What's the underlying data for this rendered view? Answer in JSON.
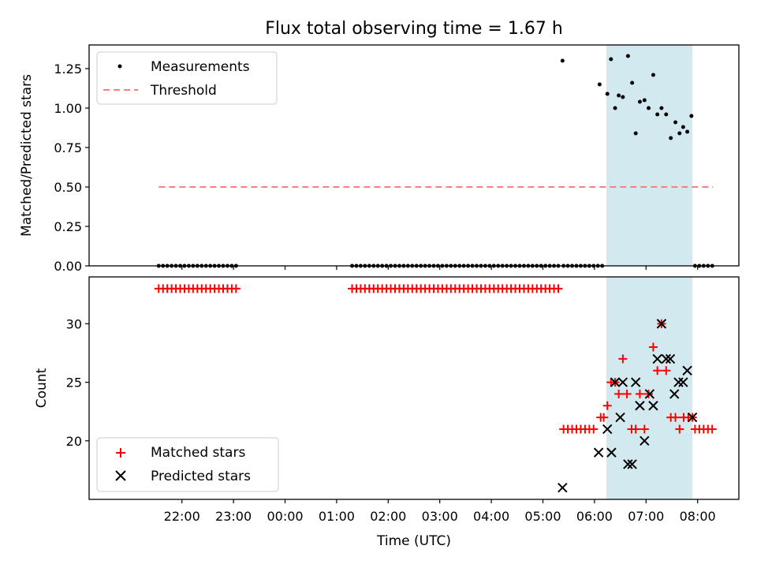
{
  "chart_data": {
    "title": "Flux total observing time = 1.67 h",
    "xlabel": "Time (UTC)",
    "x_unit": "hours since 00:00 UTC (negative = previous day)",
    "xlim": [
      -3.8,
      8.8
    ],
    "xticks": [
      -2,
      -1,
      0,
      1,
      2,
      3,
      4,
      5,
      6,
      7,
      8
    ],
    "xticklabels": [
      "22:00",
      "23:00",
      "00:00",
      "01:00",
      "02:00",
      "03:00",
      "04:00",
      "05:00",
      "06:00",
      "07:00",
      "08:00"
    ],
    "highlight_span": [
      6.23,
      7.9
    ],
    "panels": [
      {
        "id": "ratio",
        "type": "scatter",
        "ylabel": "Matched/Predicted stars",
        "ylim": [
          0,
          1.4
        ],
        "yticks": [
          0,
          0.25,
          0.5,
          0.75,
          1.0,
          1.25
        ],
        "yticklabels": [
          "0.00",
          "0.25",
          "0.50",
          "0.75",
          "1.00",
          "1.25"
        ],
        "legend": [
          "Measurements",
          "Threshold"
        ],
        "threshold": {
          "name": "Threshold",
          "y": 0.5,
          "x_range": [
            -2.45,
            8.3
          ]
        },
        "zeros": [
          {
            "start": -2.45,
            "end": -0.95,
            "step": 0.0833
          },
          {
            "start": 1.3,
            "end": 5.35,
            "step": 0.0833
          },
          {
            "start": 5.4,
            "end": 6.15,
            "step": 0.0833
          },
          {
            "start": 7.95,
            "end": 8.3,
            "step": 0.0833
          }
        ],
        "points": [
          [
            5.38,
            1.3
          ],
          [
            6.1,
            1.15
          ],
          [
            6.25,
            1.09
          ],
          [
            6.32,
            1.31
          ],
          [
            6.4,
            1.0
          ],
          [
            6.47,
            1.08
          ],
          [
            6.55,
            1.07
          ],
          [
            6.65,
            1.33
          ],
          [
            6.73,
            1.16
          ],
          [
            6.8,
            0.84
          ],
          [
            6.88,
            1.04
          ],
          [
            6.97,
            1.05
          ],
          [
            7.05,
            1.0
          ],
          [
            7.14,
            1.21
          ],
          [
            7.22,
            0.96
          ],
          [
            7.3,
            1.0
          ],
          [
            7.39,
            0.96
          ],
          [
            7.48,
            0.81
          ],
          [
            7.57,
            0.91
          ],
          [
            7.65,
            0.84
          ],
          [
            7.72,
            0.88
          ],
          [
            7.8,
            0.85
          ],
          [
            7.88,
            0.95
          ]
        ]
      },
      {
        "id": "counts",
        "type": "scatter",
        "ylabel": "Count",
        "ylim": [
          15,
          34
        ],
        "yticks": [
          20,
          25,
          30
        ],
        "yticklabels": [
          "20",
          "25",
          "30"
        ],
        "legend": [
          "Matched stars",
          "Predicted stars"
        ],
        "matched_runs": [
          {
            "start": -2.45,
            "end": -0.95,
            "step": 0.0833,
            "y": 33
          },
          {
            "start": 1.3,
            "end": 5.35,
            "step": 0.0833,
            "y": 33
          },
          {
            "start": 5.4,
            "end": 6.05,
            "step": 0.0833,
            "y": 21
          },
          {
            "start": 7.95,
            "end": 8.3,
            "step": 0.0833,
            "y": 21
          }
        ],
        "matched_points": [
          [
            6.12,
            22
          ],
          [
            6.18,
            22
          ],
          [
            6.25,
            23
          ],
          [
            6.32,
            25
          ],
          [
            6.4,
            25
          ],
          [
            6.47,
            24
          ],
          [
            6.55,
            27
          ],
          [
            6.63,
            24
          ],
          [
            6.72,
            21
          ],
          [
            6.8,
            21
          ],
          [
            6.88,
            24
          ],
          [
            6.97,
            21
          ],
          [
            7.05,
            24
          ],
          [
            7.14,
            28
          ],
          [
            7.22,
            26
          ],
          [
            7.3,
            30
          ],
          [
            7.39,
            26
          ],
          [
            7.48,
            22
          ],
          [
            7.57,
            22
          ],
          [
            7.65,
            21
          ],
          [
            7.73,
            22
          ],
          [
            7.82,
            22
          ],
          [
            7.9,
            22
          ]
        ],
        "predicted_points": [
          [
            5.38,
            16
          ],
          [
            6.08,
            19
          ],
          [
            6.25,
            21
          ],
          [
            6.33,
            19
          ],
          [
            6.4,
            25
          ],
          [
            6.5,
            22
          ],
          [
            6.55,
            25
          ],
          [
            6.65,
            18
          ],
          [
            6.73,
            18
          ],
          [
            6.8,
            25
          ],
          [
            6.88,
            23
          ],
          [
            6.97,
            20
          ],
          [
            7.07,
            24
          ],
          [
            7.14,
            23
          ],
          [
            7.22,
            27
          ],
          [
            7.3,
            30
          ],
          [
            7.39,
            27
          ],
          [
            7.47,
            27
          ],
          [
            7.55,
            24
          ],
          [
            7.63,
            25
          ],
          [
            7.72,
            25
          ],
          [
            7.8,
            26
          ],
          [
            7.9,
            22
          ]
        ]
      }
    ],
    "colors": {
      "measurements": "#000000",
      "threshold": "#ff7f7f",
      "matched": "#ff0000",
      "predicted": "#000000",
      "span": "#d3e9f0"
    }
  }
}
